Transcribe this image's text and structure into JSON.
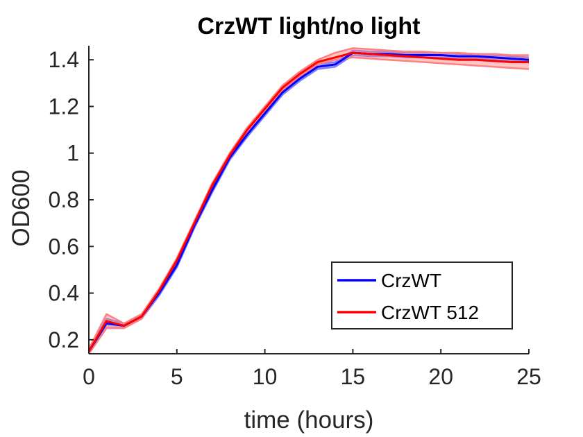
{
  "chart_data": {
    "type": "line",
    "title": "CrzWT light/no light",
    "xlabel": "time (hours)",
    "ylabel": "OD600",
    "xlim": [
      0,
      25
    ],
    "ylim": [
      0.14,
      1.46
    ],
    "xticks": [
      0,
      5,
      10,
      15,
      20,
      25
    ],
    "xtick_labels": [
      "0",
      "5",
      "10",
      "15",
      "20",
      "25"
    ],
    "yticks": [
      0.2,
      0.4,
      0.6,
      0.8,
      1.0,
      1.2,
      1.4
    ],
    "ytick_labels": [
      "0.2",
      "0.4",
      "0.6",
      "0.8",
      "1",
      "1.2",
      "1.4"
    ],
    "grid": false,
    "legend_position": "lower-right",
    "x": [
      0,
      1,
      2,
      3,
      4,
      5,
      6,
      7,
      8,
      9,
      10,
      11,
      12,
      13,
      14,
      15,
      16,
      17,
      18,
      19,
      20,
      21,
      22,
      23,
      24,
      25
    ],
    "series": [
      {
        "name": "CrzWT",
        "color": "#0000ff",
        "band_color": "#8080ff",
        "values": [
          0.15,
          0.27,
          0.26,
          0.3,
          0.4,
          0.52,
          0.69,
          0.84,
          0.98,
          1.08,
          1.17,
          1.26,
          1.32,
          1.37,
          1.38,
          1.43,
          1.425,
          1.425,
          1.42,
          1.42,
          1.42,
          1.415,
          1.415,
          1.41,
          1.405,
          1.4
        ],
        "lower": [
          0.14,
          0.25,
          0.25,
          0.29,
          0.39,
          0.51,
          0.68,
          0.83,
          0.97,
          1.07,
          1.16,
          1.25,
          1.31,
          1.36,
          1.37,
          1.42,
          1.415,
          1.415,
          1.41,
          1.41,
          1.41,
          1.405,
          1.405,
          1.4,
          1.395,
          1.39
        ],
        "upper": [
          0.16,
          0.29,
          0.27,
          0.31,
          0.41,
          0.53,
          0.7,
          0.85,
          0.99,
          1.09,
          1.18,
          1.27,
          1.33,
          1.38,
          1.39,
          1.44,
          1.435,
          1.435,
          1.43,
          1.43,
          1.43,
          1.425,
          1.425,
          1.42,
          1.415,
          1.41
        ]
      },
      {
        "name": "CrzWT 512",
        "color": "#ff0000",
        "band_color": "#ff8080",
        "values": [
          0.15,
          0.28,
          0.26,
          0.3,
          0.41,
          0.54,
          0.7,
          0.86,
          0.99,
          1.1,
          1.19,
          1.28,
          1.34,
          1.39,
          1.41,
          1.43,
          1.425,
          1.42,
          1.415,
          1.41,
          1.405,
          1.4,
          1.4,
          1.395,
          1.39,
          1.39
        ],
        "lower": [
          0.14,
          0.25,
          0.25,
          0.29,
          0.4,
          0.53,
          0.69,
          0.85,
          0.98,
          1.09,
          1.18,
          1.27,
          1.33,
          1.38,
          1.4,
          1.41,
          1.405,
          1.4,
          1.395,
          1.39,
          1.385,
          1.38,
          1.375,
          1.37,
          1.365,
          1.36
        ],
        "upper": [
          0.16,
          0.31,
          0.27,
          0.31,
          0.42,
          0.55,
          0.71,
          0.87,
          1.0,
          1.11,
          1.2,
          1.29,
          1.35,
          1.4,
          1.43,
          1.45,
          1.445,
          1.44,
          1.435,
          1.435,
          1.43,
          1.43,
          1.425,
          1.425,
          1.42,
          1.42
        ]
      }
    ]
  }
}
